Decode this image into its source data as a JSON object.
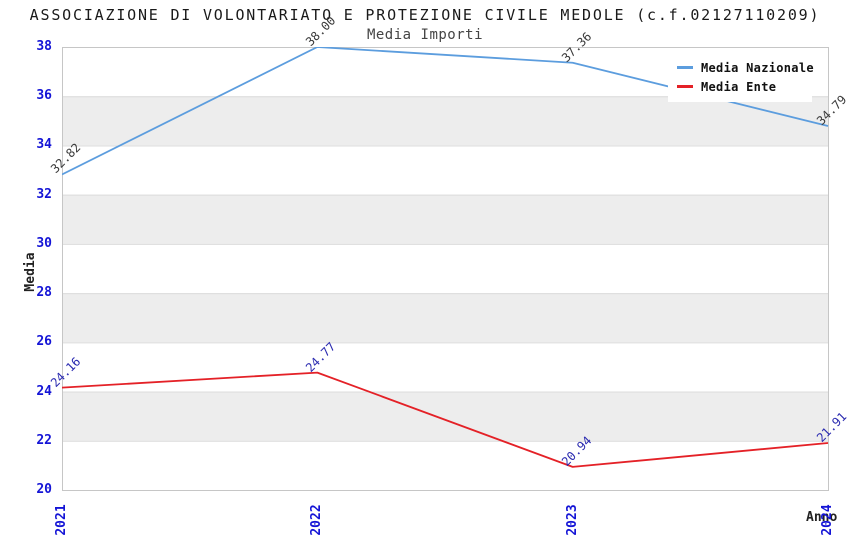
{
  "chart_data": {
    "type": "line",
    "title": "ASSOCIAZIONE DI VOLONTARIATO E PROTEZIONE CIVILE MEDOLE (c.f.02127110209)",
    "subtitle": "Media Importi",
    "xlabel": "Anno",
    "ylabel": "Media",
    "categories": [
      "2021",
      "2022",
      "2023",
      "2024"
    ],
    "ylim": [
      20,
      38
    ],
    "ytick_step": 2,
    "yticks": [
      20,
      22,
      24,
      26,
      28,
      30,
      32,
      34,
      36,
      38
    ],
    "grid": true,
    "background_bands": true,
    "legend_position": "top-right",
    "series": [
      {
        "name": "Media Nazionale",
        "color": "#5C9DDE",
        "label_color": "#3A3A3A",
        "values": [
          32.82,
          38.0,
          37.36,
          34.79
        ],
        "point_labels": [
          "32.82",
          "38.00",
          "37.36",
          "34.79"
        ]
      },
      {
        "name": "Media Ente",
        "color": "#E42127",
        "label_color": "#2A2AB0",
        "values": [
          24.16,
          24.77,
          20.94,
          21.91
        ],
        "point_labels": [
          "24.16",
          "24.77",
          "20.94",
          "21.91"
        ]
      }
    ],
    "style": {
      "tick_color": "#1414D6",
      "band_color": "#EDEDED",
      "grid_color": "#DCDCDC",
      "axis_line_color": "#C6C6C6",
      "title_color": "#1A1A1A",
      "subtitle_color": "#444444",
      "axis_label_color": "#222222",
      "legend_text_color": "#111111",
      "plot_background": "#FFFFFF"
    }
  }
}
